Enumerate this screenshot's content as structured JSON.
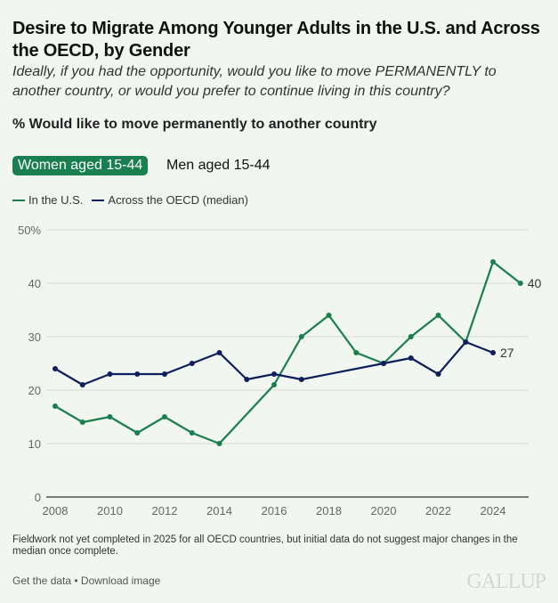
{
  "header": {
    "title": "Desire to Migrate Among Younger Adults in the U.S. and Across the OECD, by Gender",
    "subtitle": "Ideally, if you had the opportunity, would you like to move PERMANENTLY to another country, or would you prefer to continue living in this country?",
    "measure": "% Would like to move permanently to another country"
  },
  "toggles": {
    "active": "Women aged 15-44",
    "inactive": "Men aged 15-44"
  },
  "colors": {
    "us": "#1a7f4e",
    "oecd": "#0d1f5c",
    "background": "#f1f6f0"
  },
  "chart_data": {
    "type": "line",
    "title": "Desire to Migrate Among Younger Adults in the U.S. and Across the OECD, by Gender",
    "subtitle": "Women aged 15-44",
    "xlabel": "",
    "ylabel": "% Would like to move permanently to another country",
    "ylim": [
      0,
      50
    ],
    "yticks": [
      0,
      10,
      20,
      30,
      40,
      50
    ],
    "ytick_labels": [
      "0",
      "10",
      "20",
      "30",
      "40",
      "50%"
    ],
    "xlim": [
      2008,
      2025
    ],
    "xticks": [
      2008,
      2010,
      2012,
      2014,
      2016,
      2018,
      2020,
      2022,
      2024
    ],
    "grid": true,
    "legend_position": "top-left",
    "series": [
      {
        "name": "In the U.S.",
        "color": "#1a7f4e",
        "points": [
          [
            2008,
            17
          ],
          [
            2009,
            14
          ],
          [
            2010,
            15
          ],
          [
            2011,
            12
          ],
          [
            2012,
            15
          ],
          [
            2013,
            12
          ],
          [
            2014,
            10
          ],
          [
            2016,
            21
          ],
          [
            2017,
            30
          ],
          [
            2018,
            34
          ],
          [
            2019,
            27
          ],
          [
            2020,
            25
          ],
          [
            2021,
            30
          ],
          [
            2022,
            34
          ],
          [
            2023,
            29
          ],
          [
            2024,
            44
          ],
          [
            2025,
            40
          ]
        ],
        "end_label": "40"
      },
      {
        "name": "Across the OECD (median)",
        "color": "#0d1f5c",
        "points": [
          [
            2008,
            24
          ],
          [
            2009,
            21
          ],
          [
            2010,
            23
          ],
          [
            2011,
            23
          ],
          [
            2012,
            23
          ],
          [
            2013,
            25
          ],
          [
            2014,
            27
          ],
          [
            2015,
            22
          ],
          [
            2016,
            23
          ],
          [
            2017,
            22
          ],
          [
            2020,
            25
          ],
          [
            2021,
            26
          ],
          [
            2022,
            23
          ],
          [
            2023,
            29
          ],
          [
            2024,
            27
          ]
        ],
        "end_label": "27"
      }
    ]
  },
  "footer": {
    "note": "Fieldwork not yet completed in 2025 for all OECD countries, but initial data do not suggest major changes in the median once complete.",
    "get_data": "Get the data",
    "separator": " • ",
    "download": "Download image",
    "logo": "GALLUP"
  }
}
